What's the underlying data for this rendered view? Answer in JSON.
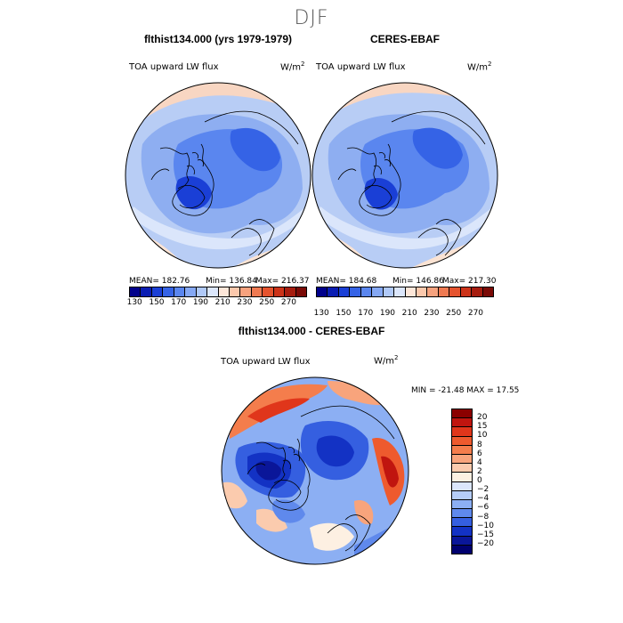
{
  "page": {
    "season": "DJF"
  },
  "panel_left": {
    "title": "flthist134.000 (yrs 1979-1979)",
    "variable": "TOA upward LW flux",
    "units": "W/m",
    "units_exp": "2",
    "stats": {
      "mean": "MEAN= 182.76",
      "min": "Min= 136.84",
      "max": "Max= 216.37"
    }
  },
  "panel_right": {
    "title": "CERES-EBAF",
    "variable": "TOA upward LW flux",
    "units": "W/m",
    "units_exp": "2",
    "stats": {
      "mean": "MEAN= 184.68",
      "min": "Min= 146.86",
      "max": "Max= 217.30"
    }
  },
  "panel_diff": {
    "title": "flthist134.000 - CERES-EBAF",
    "variable": "TOA upward LW flux",
    "units": "W/m",
    "units_exp": "2",
    "minmax": "MIN = -21.48 MAX =  17.55"
  },
  "abs_colorbar": {
    "tick_labels": [
      "130",
      "150",
      "170",
      "190",
      "210",
      "230",
      "250",
      "270"
    ],
    "colors": [
      "#00008b",
      "#0a1db3",
      "#1a3fd6",
      "#3563e6",
      "#5a86ef",
      "#85a8f4",
      "#b0c9f8",
      "#dbe6fb",
      "#fde6d8",
      "#fbc8ac",
      "#f6a27e",
      "#ef7a52",
      "#e5532e",
      "#cc3319",
      "#a61c0e",
      "#7a0a06"
    ]
  },
  "diff_colorbar": {
    "tick_labels": [
      "20",
      "15",
      "10",
      "8",
      "6",
      "4",
      "2",
      "0",
      "−2",
      "−4",
      "−6",
      "−8",
      "−10",
      "−15",
      "−20"
    ],
    "colors": [
      "#8b0000",
      "#c0150f",
      "#e0361b",
      "#ee5a2e",
      "#f47d4c",
      "#f8a47c",
      "#fbcbae",
      "#fdf0e2",
      "#dbe6fb",
      "#b5cdf8",
      "#8caff3",
      "#5f89ec",
      "#355fe0",
      "#1332c4",
      "#0a1699",
      "#00006f"
    ]
  }
}
